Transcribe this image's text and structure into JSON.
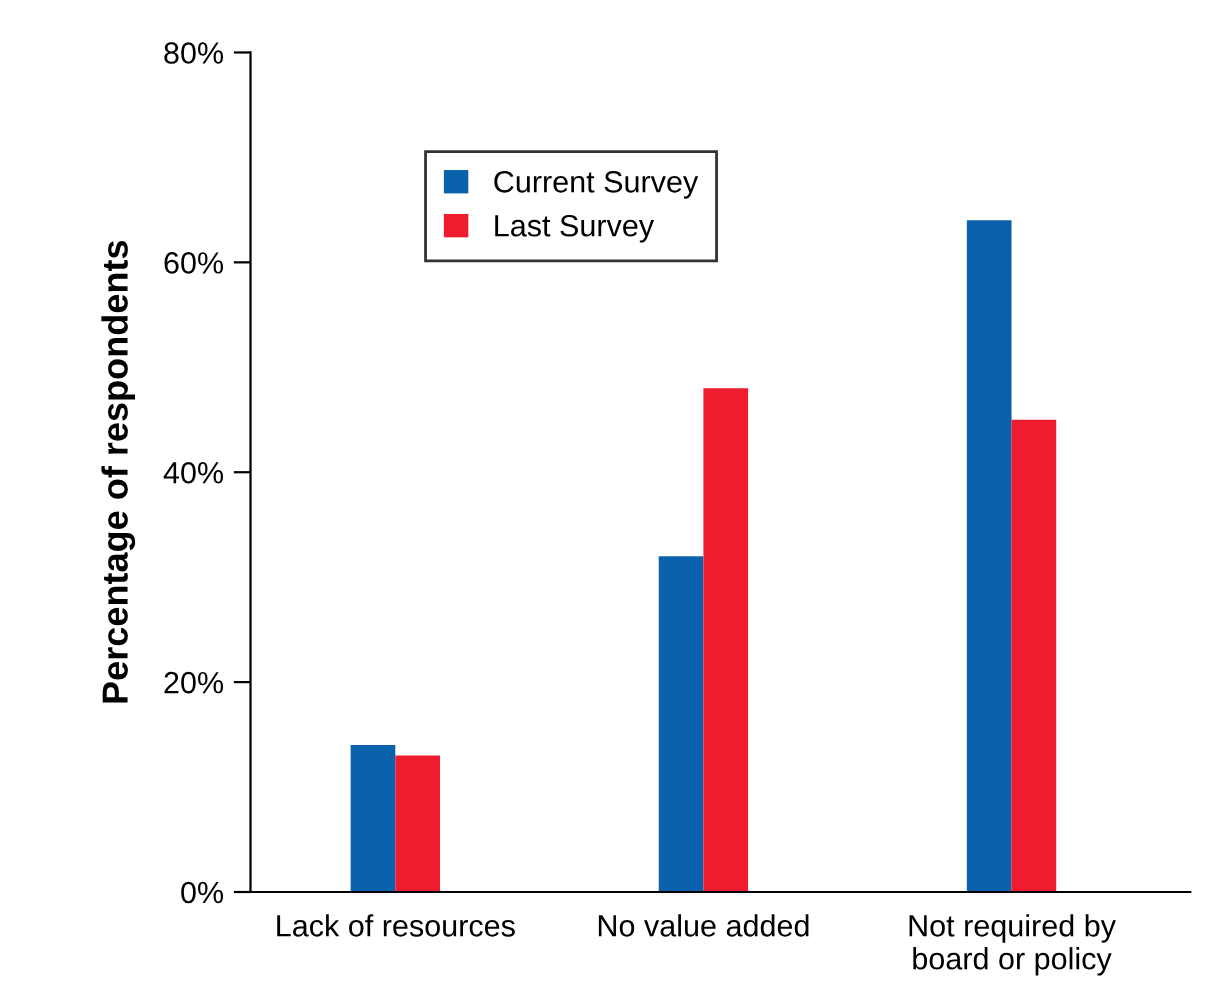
{
  "chart_data": {
    "type": "bar",
    "ylabel": "Percentage of respondents",
    "categories": [
      "Lack of resources",
      "No value added",
      "Not required by\nboard or policy"
    ],
    "series": [
      {
        "name": "Current Survey",
        "color": "#0a62ad",
        "values": [
          14,
          32,
          64
        ]
      },
      {
        "name": "Last Survey",
        "color": "#ee1c2e",
        "values": [
          13,
          48,
          45
        ]
      }
    ],
    "ylim": [
      0,
      80
    ],
    "yticks": [
      {
        "value": 0,
        "label": "0%"
      },
      {
        "value": 20,
        "label": "20%"
      },
      {
        "value": 40,
        "label": "40%"
      },
      {
        "value": 60,
        "label": "60%"
      },
      {
        "value": 80,
        "label": "80%"
      }
    ],
    "grid": false,
    "legend": "top left"
  }
}
